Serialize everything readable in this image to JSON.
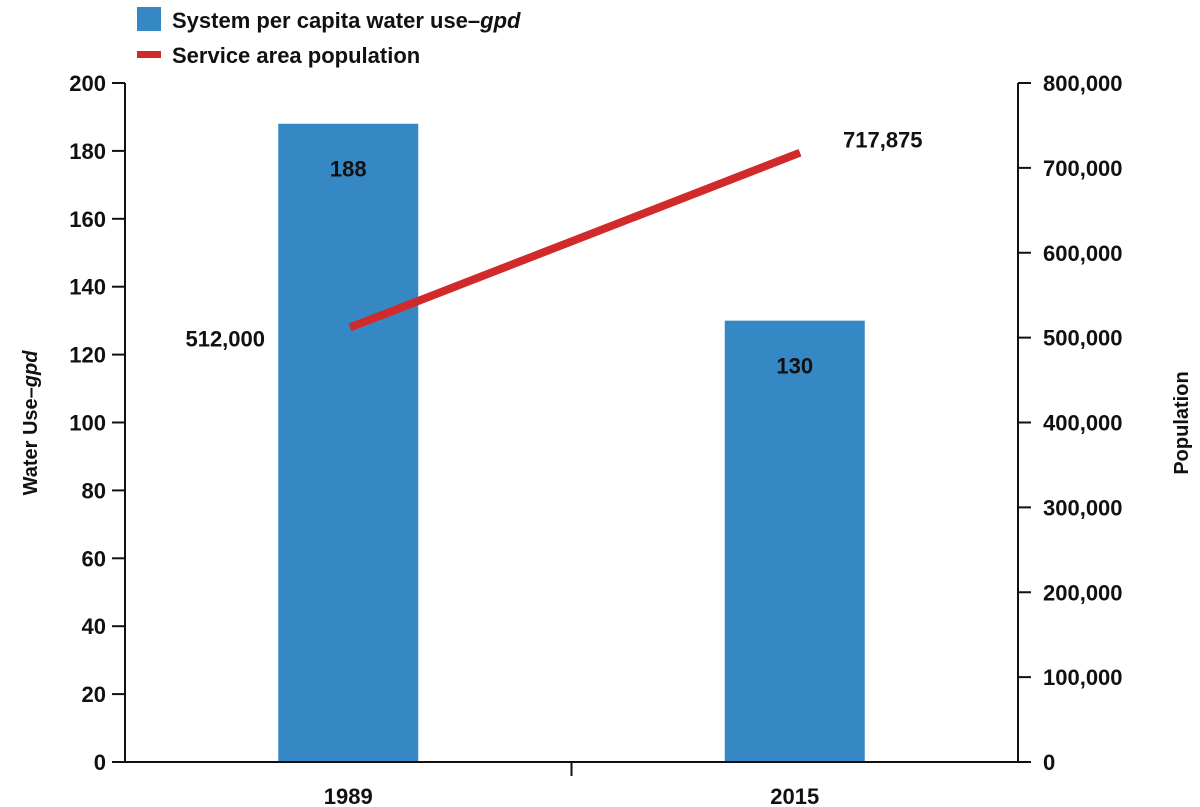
{
  "legend": {
    "bar_label": "System per capita water use–",
    "bar_label_unit": "gpd",
    "line_label": "Service area population"
  },
  "axes": {
    "left_label": "Water Use–",
    "left_label_unit": "gpd",
    "right_label": "Population"
  },
  "colors": {
    "bar": "#3588c3",
    "line": "#d12a2a",
    "axis": "#111111"
  },
  "chart_data": {
    "type": "bar",
    "categories": [
      "1989",
      "2015"
    ],
    "series": [
      {
        "name": "System per capita water use–gpd",
        "type": "bar",
        "axis": "left",
        "values": [
          188,
          130
        ],
        "data_labels": [
          "188",
          "130"
        ]
      },
      {
        "name": "Service area population",
        "type": "line",
        "axis": "right",
        "values": [
          512000,
          717875
        ],
        "data_labels": [
          "512,000",
          "717,875"
        ]
      }
    ],
    "y_left": {
      "label": "Water Use–gpd",
      "ylim": [
        0,
        200
      ],
      "ticks": [
        "0",
        "20",
        "40",
        "60",
        "80",
        "100",
        "120",
        "140",
        "160",
        "180",
        "200"
      ]
    },
    "y_right": {
      "label": "Population",
      "ylim": [
        0,
        800000
      ],
      "ticks": [
        "0",
        "100,000",
        "200,000",
        "300,000",
        "400,000",
        "500,000",
        "600,000",
        "700,000",
        "800,000"
      ]
    },
    "grid": false,
    "legend_position": "top-left"
  }
}
